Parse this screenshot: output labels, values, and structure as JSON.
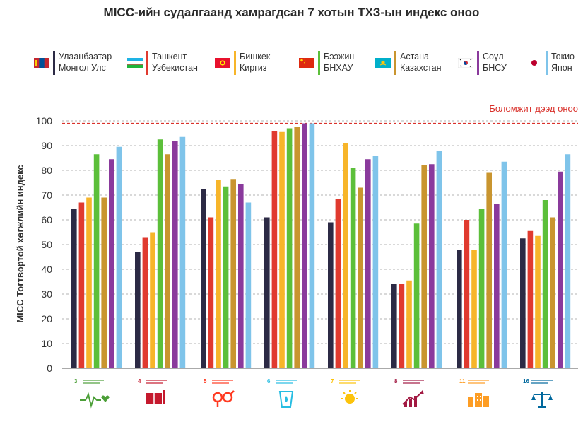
{
  "title": "MICC-ийн судалгаанд хамрагдсан 7 хотын ТХЗ-ын индекс оноо",
  "legend": [
    {
      "city": "Улаанбаатар",
      "country": "Монгол Улс",
      "color": "#2c2a45",
      "flag": "mongolia-flag-icon"
    },
    {
      "city": "Ташкент",
      "country": "Узбекистан",
      "color": "#e03a2f",
      "flag": "uzbekistan-flag-icon"
    },
    {
      "city": "Бишкек",
      "country": "Киргиз",
      "color": "#f7b52a",
      "flag": "kyrgyzstan-flag-icon"
    },
    {
      "city": "Бээжин",
      "country": "БНХАУ",
      "color": "#5cbf3a",
      "flag": "china-flag-icon"
    },
    {
      "city": "Астана",
      "country": "Казахстан",
      "color": "#c9952f",
      "flag": "kazakhstan-flag-icon"
    },
    {
      "city": "Сөүл",
      "country": "БНСУ",
      "color": "#8a3a9c",
      "flag": "korea-flag-icon"
    },
    {
      "city": "Токио",
      "country": "Япон",
      "color": "#7fc4ea",
      "flag": "japan-flag-icon"
    }
  ],
  "chart_data": {
    "type": "bar",
    "ylabel": "MICC Тогтвортой хөгжлийн индекс",
    "ylim": [
      0,
      100
    ],
    "yticks": [
      0,
      10,
      20,
      30,
      40,
      50,
      60,
      70,
      80,
      90,
      100
    ],
    "reference_line": {
      "value": 99,
      "label": "Боломжит дээд оноо",
      "color": "#d9312b"
    },
    "categories": [
      "3",
      "4",
      "5",
      "6",
      "7",
      "8",
      "11",
      "16"
    ],
    "series": [
      {
        "name": "Улаанбаатар",
        "values": [
          64.5,
          47,
          72.5,
          61,
          59,
          34,
          48,
          52.5
        ]
      },
      {
        "name": "Ташкент",
        "values": [
          67,
          53,
          61,
          96,
          68.5,
          34,
          60,
          55.5
        ]
      },
      {
        "name": "Бишкек",
        "values": [
          69,
          55,
          76,
          95.5,
          91,
          35.5,
          48,
          53.5
        ]
      },
      {
        "name": "Бээжин",
        "values": [
          86.5,
          92.5,
          73.5,
          97,
          81,
          58.5,
          64.5,
          68
        ]
      },
      {
        "name": "Астана",
        "values": [
          69,
          86.5,
          76.5,
          97.5,
          73,
          82,
          79,
          61
        ]
      },
      {
        "name": "Сөүл",
        "values": [
          84.5,
          92,
          74.5,
          99,
          84.5,
          82.5,
          66.5,
          79.5
        ]
      },
      {
        "name": "Токио",
        "values": [
          89.5,
          93.5,
          67,
          99,
          86,
          88,
          83.5,
          86.5
        ]
      }
    ]
  },
  "sdg_icons": [
    {
      "number": "3",
      "color": "#4c9f38",
      "icon": "heartbeat-icon"
    },
    {
      "number": "4",
      "color": "#c5192d",
      "icon": "book-pencil-icon"
    },
    {
      "number": "5",
      "color": "#ff3a21",
      "icon": "gender-equality-icon"
    },
    {
      "number": "6",
      "color": "#26bde2",
      "icon": "water-glass-icon"
    },
    {
      "number": "7",
      "color": "#fcc30b",
      "icon": "sun-power-icon"
    },
    {
      "number": "8",
      "color": "#a21942",
      "icon": "growth-chart-icon"
    },
    {
      "number": "11",
      "color": "#fd9d24",
      "icon": "city-buildings-icon"
    },
    {
      "number": "16",
      "color": "#00689d",
      "icon": "justice-scale-icon"
    }
  ]
}
